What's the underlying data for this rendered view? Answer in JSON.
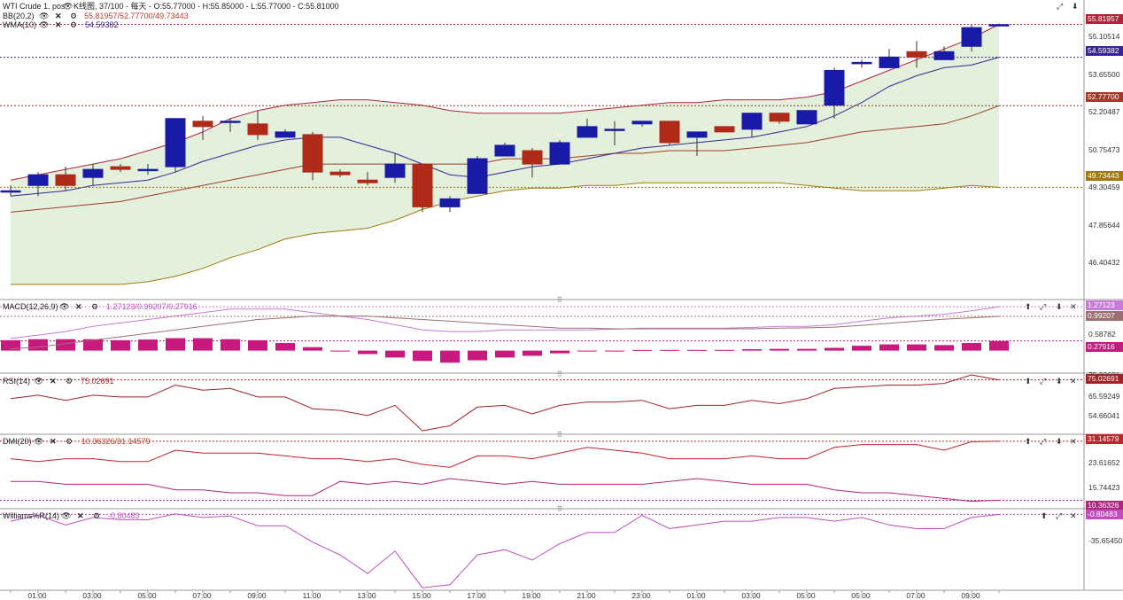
{
  "header": {
    "title": "WTI Crude 1. pos",
    "settings": "K线图, 37/100 - 每天 - O:55.77000 - H:55.85000 - L:55.77000 - C:55.81000"
  },
  "indicators": {
    "bb": {
      "name": "BB(20,2)",
      "values": "55.81957/52.77700/49.73443"
    },
    "wma": {
      "name": "WMA(10)",
      "values": "54.59382"
    },
    "macd": {
      "name": "MACD(12,26,9)",
      "values": "1.27123/0.99207/0.27916"
    },
    "rsi": {
      "name": "RSI(14)",
      "values": "75.02691"
    },
    "dmi": {
      "name": "DMI(20)",
      "values": "10.36326/31.14579"
    },
    "wpr": {
      "name": "Williams%R(14)",
      "values": "-0.80483"
    }
  },
  "price_axis": {
    "ticks": [
      "55.10514",
      "53.65500",
      "52.20487",
      "50.75473",
      "49.30459",
      "47.85644",
      "46.40432"
    ],
    "tags": [
      "55.81957",
      "54.59382",
      "52.77700",
      "49.73443"
    ]
  },
  "macd_axis": {
    "ticks": [
      "0.58782"
    ],
    "tags": [
      "1.27123",
      "0.99207",
      "0.27916"
    ],
    "partial": "75.02691"
  },
  "rsi_axis": {
    "ticks": [
      "65.59249",
      "54.66041"
    ],
    "tags": [
      "75.02691"
    ]
  },
  "dmi_axis": {
    "ticks": [
      "23.61652",
      "15.74423"
    ],
    "tags": [
      "31.14579",
      "10.36326"
    ]
  },
  "wpr_axis": {
    "ticks": [
      "-35.65450"
    ],
    "tags": [
      "-0.80483"
    ]
  },
  "x_labels": [
    "01:00",
    "03:00",
    "05:00",
    "07:00",
    "09:00",
    "11:00",
    "13:00",
    "15:00",
    "17:00",
    "19:00",
    "21:00",
    "23:00",
    "01:00",
    "03:00",
    "05:00",
    "05:00",
    "07:00",
    "09:00"
  ],
  "colors": {
    "up": "#1a1aa8",
    "down": "#b02a1a",
    "bb_fill": "#e3f1dc",
    "macd_hist": "#c8197e",
    "rsi": "#a0232a",
    "wma": "#3a2590"
  },
  "chart_data": [
    {
      "type": "candlestick",
      "title": "WTI Crude 1. pos",
      "ylim": [
        45.8,
        56.4
      ],
      "candles": [
        {
          "o": 49.6,
          "h": 49.8,
          "l": 49.4,
          "c": 49.6
        },
        {
          "o": 49.8,
          "h": 50.3,
          "l": 49.4,
          "c": 50.2
        },
        {
          "o": 50.2,
          "h": 50.5,
          "l": 49.6,
          "c": 49.8
        },
        {
          "o": 50.1,
          "h": 50.6,
          "l": 49.8,
          "c": 50.4
        },
        {
          "o": 50.5,
          "h": 50.6,
          "l": 50.3,
          "c": 50.4
        },
        {
          "o": 50.4,
          "h": 50.6,
          "l": 50.2,
          "c": 50.4
        },
        {
          "o": 50.5,
          "h": 52.3,
          "l": 50.3,
          "c": 52.3
        },
        {
          "o": 52.2,
          "h": 52.4,
          "l": 51.5,
          "c": 52.0
        },
        {
          "o": 52.2,
          "h": 52.3,
          "l": 51.8,
          "c": 52.2
        },
        {
          "o": 52.1,
          "h": 52.6,
          "l": 51.5,
          "c": 51.7
        },
        {
          "o": 51.6,
          "h": 51.9,
          "l": 51.6,
          "c": 51.8
        },
        {
          "o": 51.7,
          "h": 51.8,
          "l": 50.0,
          "c": 50.3
        },
        {
          "o": 50.3,
          "h": 50.4,
          "l": 50.1,
          "c": 50.2
        },
        {
          "o": 50.0,
          "h": 50.3,
          "l": 49.8,
          "c": 49.9
        },
        {
          "o": 50.1,
          "h": 51.0,
          "l": 49.9,
          "c": 50.6
        },
        {
          "o": 50.6,
          "h": 50.6,
          "l": 48.8,
          "c": 49.0
        },
        {
          "o": 49.0,
          "h": 49.4,
          "l": 48.8,
          "c": 49.3
        },
        {
          "o": 49.5,
          "h": 50.9,
          "l": 49.5,
          "c": 50.8
        },
        {
          "o": 50.9,
          "h": 51.4,
          "l": 50.9,
          "c": 51.3
        },
        {
          "o": 51.1,
          "h": 51.2,
          "l": 50.1,
          "c": 50.6
        },
        {
          "o": 50.6,
          "h": 51.5,
          "l": 50.6,
          "c": 51.4
        },
        {
          "o": 51.6,
          "h": 52.3,
          "l": 51.6,
          "c": 52.0
        },
        {
          "o": 51.9,
          "h": 52.2,
          "l": 51.3,
          "c": 51.9
        },
        {
          "o": 52.1,
          "h": 52.2,
          "l": 52.0,
          "c": 52.2
        },
        {
          "o": 52.2,
          "h": 52.2,
          "l": 51.3,
          "c": 51.4
        },
        {
          "o": 51.6,
          "h": 51.8,
          "l": 50.9,
          "c": 51.8
        },
        {
          "o": 52.0,
          "h": 52.0,
          "l": 51.8,
          "c": 51.8
        },
        {
          "o": 51.9,
          "h": 52.5,
          "l": 51.6,
          "c": 52.5
        },
        {
          "o": 52.5,
          "h": 52.5,
          "l": 52.1,
          "c": 52.2
        },
        {
          "o": 52.1,
          "h": 52.6,
          "l": 52.1,
          "c": 52.6
        },
        {
          "o": 52.8,
          "h": 54.2,
          "l": 52.3,
          "c": 54.1
        },
        {
          "o": 54.4,
          "h": 54.5,
          "l": 54.2,
          "c": 54.4
        },
        {
          "o": 54.2,
          "h": 54.9,
          "l": 54.2,
          "c": 54.6
        },
        {
          "o": 54.8,
          "h": 55.2,
          "l": 54.2,
          "c": 54.6
        },
        {
          "o": 54.5,
          "h": 55.0,
          "l": 54.5,
          "c": 54.8
        },
        {
          "o": 55.0,
          "h": 55.8,
          "l": 54.8,
          "c": 55.7
        },
        {
          "o": 55.77,
          "h": 55.85,
          "l": 55.77,
          "c": 55.81
        }
      ],
      "bb_upper": [
        50.0,
        50.2,
        50.4,
        50.6,
        50.8,
        51.1,
        51.4,
        51.8,
        52.3,
        52.6,
        52.8,
        52.9,
        53.0,
        53.0,
        52.9,
        52.8,
        52.6,
        52.5,
        52.5,
        52.5,
        52.5,
        52.6,
        52.7,
        52.8,
        52.9,
        52.9,
        53.0,
        53.0,
        53.0,
        53.1,
        53.3,
        53.7,
        54.1,
        54.5,
        54.9,
        55.3,
        55.82
      ],
      "bb_mid": [
        48.8,
        48.9,
        49.0,
        49.1,
        49.2,
        49.4,
        49.6,
        49.8,
        50.0,
        50.2,
        50.4,
        50.6,
        50.6,
        50.6,
        50.6,
        50.6,
        50.6,
        50.6,
        50.8,
        50.8,
        50.8,
        50.9,
        51.0,
        51.0,
        51.1,
        51.1,
        51.1,
        51.2,
        51.3,
        51.4,
        51.6,
        51.8,
        51.9,
        52.0,
        52.1,
        52.4,
        52.78
      ],
      "bb_lower": [
        46.1,
        46.1,
        46.1,
        46.1,
        46.1,
        46.2,
        46.4,
        46.7,
        47.1,
        47.4,
        47.8,
        48.0,
        48.1,
        48.2,
        48.5,
        48.9,
        49.2,
        49.4,
        49.6,
        49.7,
        49.7,
        49.8,
        49.8,
        49.9,
        49.9,
        49.9,
        49.9,
        49.9,
        49.9,
        49.8,
        49.7,
        49.6,
        49.6,
        49.6,
        49.7,
        49.8,
        49.73
      ],
      "wma": [
        49.4,
        49.5,
        49.6,
        49.8,
        49.9,
        50.0,
        50.3,
        50.7,
        51.0,
        51.3,
        51.5,
        51.6,
        51.6,
        51.3,
        51.0,
        50.6,
        50.2,
        50.1,
        50.3,
        50.5,
        50.6,
        50.8,
        51.0,
        51.2,
        51.3,
        51.4,
        51.5,
        51.6,
        51.8,
        52.0,
        52.4,
        52.9,
        53.5,
        53.9,
        54.2,
        54.3,
        54.59
      ]
    },
    {
      "type": "line+bar",
      "title": "MACD(12,26,9)",
      "ylim": [
        -0.6,
        1.4
      ],
      "macd": [
        0.35,
        0.45,
        0.55,
        0.7,
        0.8,
        0.9,
        1.0,
        1.1,
        1.2,
        1.2,
        1.2,
        1.1,
        1.0,
        0.9,
        0.75,
        0.6,
        0.55,
        0.55,
        0.6,
        0.6,
        0.6,
        0.6,
        0.62,
        0.65,
        0.65,
        0.65,
        0.65,
        0.67,
        0.7,
        0.7,
        0.75,
        0.85,
        0.95,
        1.0,
        1.05,
        1.15,
        1.27
      ],
      "signal": [
        0.05,
        0.1,
        0.2,
        0.3,
        0.4,
        0.5,
        0.6,
        0.7,
        0.8,
        0.9,
        0.95,
        1.0,
        1.0,
        1.0,
        0.95,
        0.9,
        0.85,
        0.8,
        0.75,
        0.7,
        0.65,
        0.65,
        0.63,
        0.63,
        0.63,
        0.63,
        0.63,
        0.63,
        0.65,
        0.66,
        0.68,
        0.73,
        0.79,
        0.85,
        0.91,
        0.95,
        0.99
      ],
      "hist": [
        0.3,
        0.33,
        0.33,
        0.33,
        0.3,
        0.32,
        0.36,
        0.36,
        0.33,
        0.3,
        0.22,
        0.1,
        0.0,
        -0.1,
        -0.2,
        -0.3,
        -0.35,
        -0.28,
        -0.2,
        -0.15,
        -0.08,
        -0.02,
        0.0,
        0.02,
        0.02,
        0.02,
        0.02,
        0.04,
        0.05,
        0.05,
        0.08,
        0.14,
        0.18,
        0.18,
        0.16,
        0.22,
        0.28
      ]
    },
    {
      "type": "line",
      "title": "RSI(14)",
      "ylim": [
        44,
        78
      ],
      "values": [
        64,
        66,
        63,
        66,
        65,
        65,
        72,
        69,
        70,
        65,
        65,
        58,
        57,
        54,
        60,
        45,
        48,
        59,
        60,
        55,
        60,
        62,
        62,
        63,
        58,
        60,
        60,
        63,
        61,
        64,
        70,
        71,
        72,
        72,
        73,
        78,
        75.03
      ]
    },
    {
      "type": "line",
      "title": "DMI(20)",
      "ylim": [
        8,
        33
      ],
      "series": [
        {
          "name": "+DI",
          "values": [
            25,
            24,
            25,
            25,
            24,
            24,
            28,
            27,
            27,
            27,
            26,
            25,
            25,
            24,
            25,
            23,
            22,
            26,
            26,
            25,
            27,
            29,
            28,
            27,
            25,
            25,
            25,
            26,
            25,
            25,
            29,
            30,
            30,
            30,
            28,
            31,
            31.15
          ]
        },
        {
          "name": "-DI",
          "values": [
            17,
            17,
            16,
            16,
            16,
            16,
            14,
            14,
            13,
            13,
            12,
            12,
            17,
            16,
            17,
            16,
            18,
            17,
            16,
            17,
            16,
            16,
            16,
            16,
            17,
            18,
            17,
            16,
            16,
            16,
            14,
            13,
            13,
            12,
            11,
            10,
            10.36
          ]
        }
      ]
    },
    {
      "type": "line",
      "title": "Williams%R(14)",
      "ylim": [
        -100,
        2
      ],
      "values": [
        -10,
        -2,
        -15,
        -5,
        -8,
        -8,
        0,
        -5,
        -3,
        -16,
        -16,
        -38,
        -55,
        -80,
        -50,
        -99,
        -95,
        -55,
        -48,
        -62,
        -40,
        -25,
        -25,
        -2,
        -20,
        -15,
        -10,
        -10,
        -5,
        -5,
        -10,
        -5,
        -15,
        -20,
        -20,
        -5,
        -0.8
      ]
    }
  ]
}
